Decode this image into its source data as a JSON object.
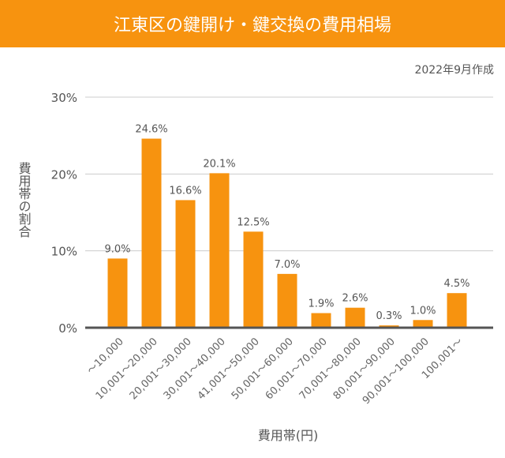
{
  "header": {
    "title": "江東区の鍵開け・鍵交換の費用相場"
  },
  "note": "2022年9月作成",
  "colors": {
    "bar": "#F7930F",
    "axis": "#555555",
    "grid": "#cccccc",
    "header": "#F7930F"
  },
  "chart_data": {
    "type": "bar",
    "title": "江東区の鍵開け・鍵交換の費用相場",
    "xlabel": "費用帯(円)",
    "ylabel": "費用帯の割合",
    "ylim": [
      0,
      30
    ],
    "yticks": [
      "0%",
      "10%",
      "20%",
      "30%"
    ],
    "grid": true,
    "categories": [
      "～10,000",
      "10,001～20,000",
      "20,001～30,000",
      "30,001～40,000",
      "41,001～50,000",
      "50,001～60,000",
      "60,001～70,000",
      "70,001～80,000",
      "80,001～90,000",
      "90,001～100,000",
      "100,001～"
    ],
    "values": [
      9.0,
      24.6,
      16.6,
      20.1,
      12.5,
      7.0,
      1.9,
      2.6,
      0.3,
      1.0,
      4.5
    ],
    "labels": [
      "9.0%",
      "24.6%",
      "16.6%",
      "20.1%",
      "12.5%",
      "7.0%",
      "1.9%",
      "2.6%",
      "0.3%",
      "1.0%",
      "4.5%"
    ]
  }
}
